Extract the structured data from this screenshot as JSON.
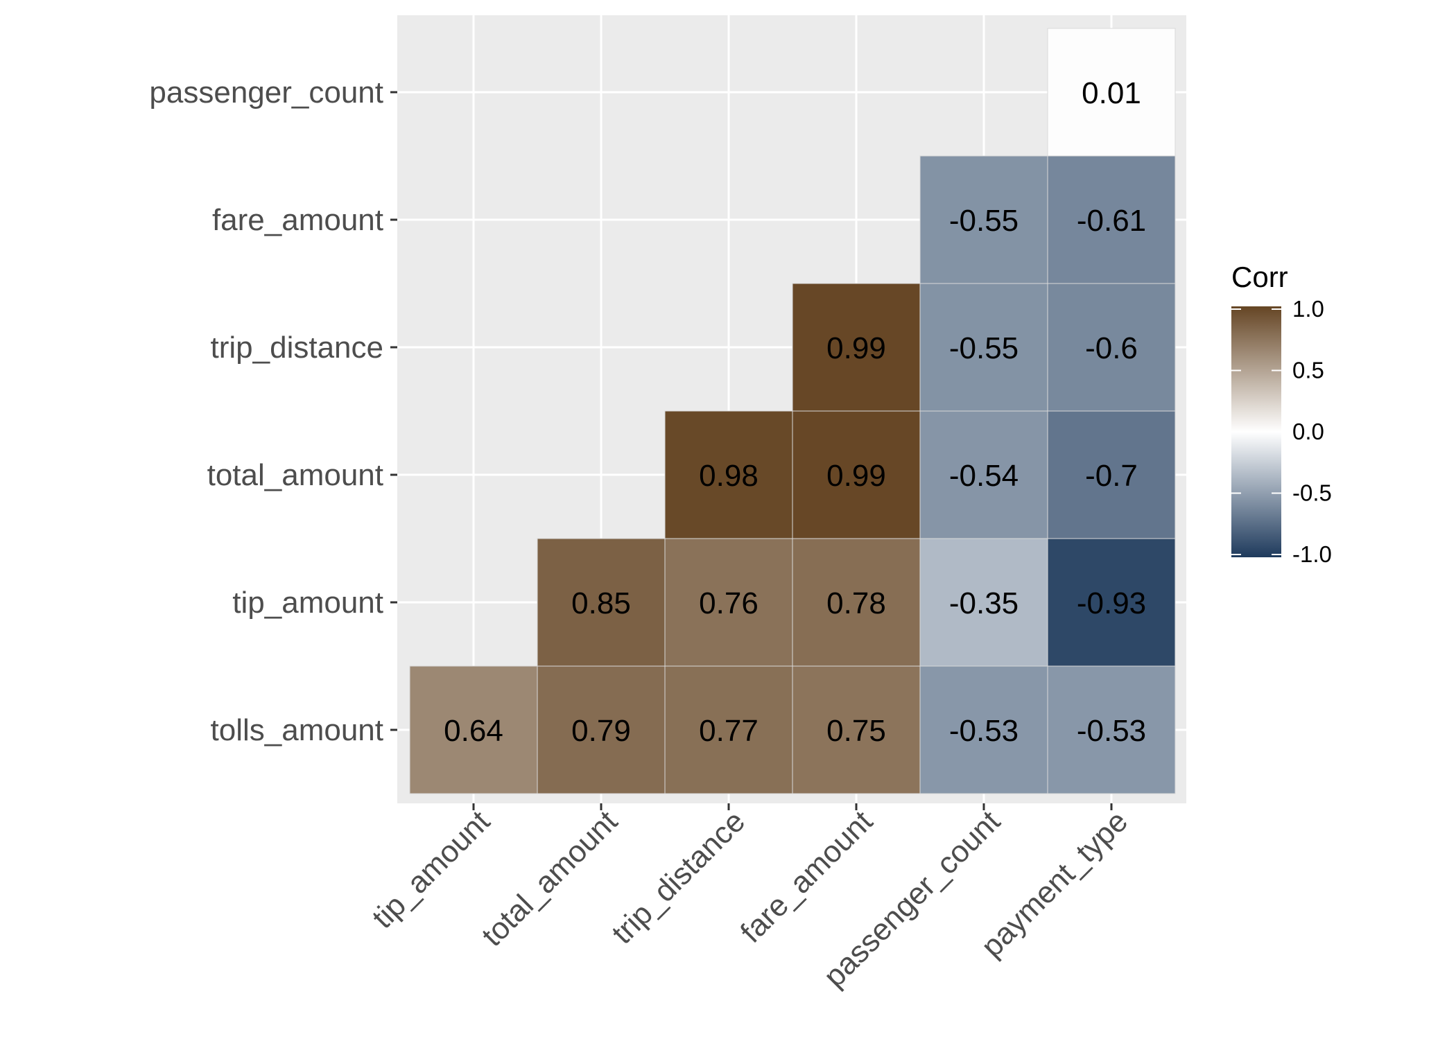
{
  "chart_data": {
    "type": "heatmap",
    "title": "",
    "xlabel": "",
    "ylabel": "",
    "x_categories": [
      "tip_amount",
      "total_amount",
      "trip_distance",
      "fare_amount",
      "passenger_count",
      "payment_type"
    ],
    "y_categories": [
      "tolls_amount",
      "tip_amount",
      "total_amount",
      "trip_distance",
      "fare_amount",
      "passenger_count"
    ],
    "cells": [
      {
        "x": "tip_amount",
        "y": "tolls_amount",
        "value": 0.64,
        "label": "0.64"
      },
      {
        "x": "total_amount",
        "y": "tolls_amount",
        "value": 0.79,
        "label": "0.79"
      },
      {
        "x": "trip_distance",
        "y": "tolls_amount",
        "value": 0.77,
        "label": "0.77"
      },
      {
        "x": "fare_amount",
        "y": "tolls_amount",
        "value": 0.75,
        "label": "0.75"
      },
      {
        "x": "passenger_count",
        "y": "tolls_amount",
        "value": -0.53,
        "label": "-0.53"
      },
      {
        "x": "payment_type",
        "y": "tolls_amount",
        "value": -0.53,
        "label": "-0.53"
      },
      {
        "x": "total_amount",
        "y": "tip_amount",
        "value": 0.85,
        "label": "0.85"
      },
      {
        "x": "trip_distance",
        "y": "tip_amount",
        "value": 0.76,
        "label": "0.76"
      },
      {
        "x": "fare_amount",
        "y": "tip_amount",
        "value": 0.78,
        "label": "0.78"
      },
      {
        "x": "passenger_count",
        "y": "tip_amount",
        "value": -0.35,
        "label": "-0.35"
      },
      {
        "x": "payment_type",
        "y": "tip_amount",
        "value": -0.93,
        "label": "-0.93"
      },
      {
        "x": "trip_distance",
        "y": "total_amount",
        "value": 0.98,
        "label": "0.98"
      },
      {
        "x": "fare_amount",
        "y": "total_amount",
        "value": 0.99,
        "label": "0.99"
      },
      {
        "x": "passenger_count",
        "y": "total_amount",
        "value": -0.54,
        "label": "-0.54"
      },
      {
        "x": "payment_type",
        "y": "total_amount",
        "value": -0.7,
        "label": "-0.7"
      },
      {
        "x": "fare_amount",
        "y": "trip_distance",
        "value": 0.99,
        "label": "0.99"
      },
      {
        "x": "passenger_count",
        "y": "trip_distance",
        "value": -0.55,
        "label": "-0.55"
      },
      {
        "x": "payment_type",
        "y": "trip_distance",
        "value": -0.6,
        "label": "-0.6"
      },
      {
        "x": "passenger_count",
        "y": "fare_amount",
        "value": -0.55,
        "label": "-0.55"
      },
      {
        "x": "payment_type",
        "y": "fare_amount",
        "value": -0.61,
        "label": "-0.61"
      },
      {
        "x": "payment_type",
        "y": "passenger_count",
        "value": 0.01,
        "label": "0.01"
      }
    ],
    "legend": {
      "title": "Corr",
      "position": "right",
      "breaks": [
        1.0,
        0.5,
        0.0,
        -0.5,
        -1.0
      ],
      "break_labels": [
        "1.0",
        "0.5",
        "0.0",
        "-0.5",
        "-1.0"
      ],
      "limits": [
        -1,
        1
      ]
    },
    "colors": {
      "high": "#654524",
      "mid": "#ffffff",
      "low": "#1e3a5c",
      "panel_background": "#ebebeb",
      "grid": "#ffffff"
    },
    "grid": true
  }
}
